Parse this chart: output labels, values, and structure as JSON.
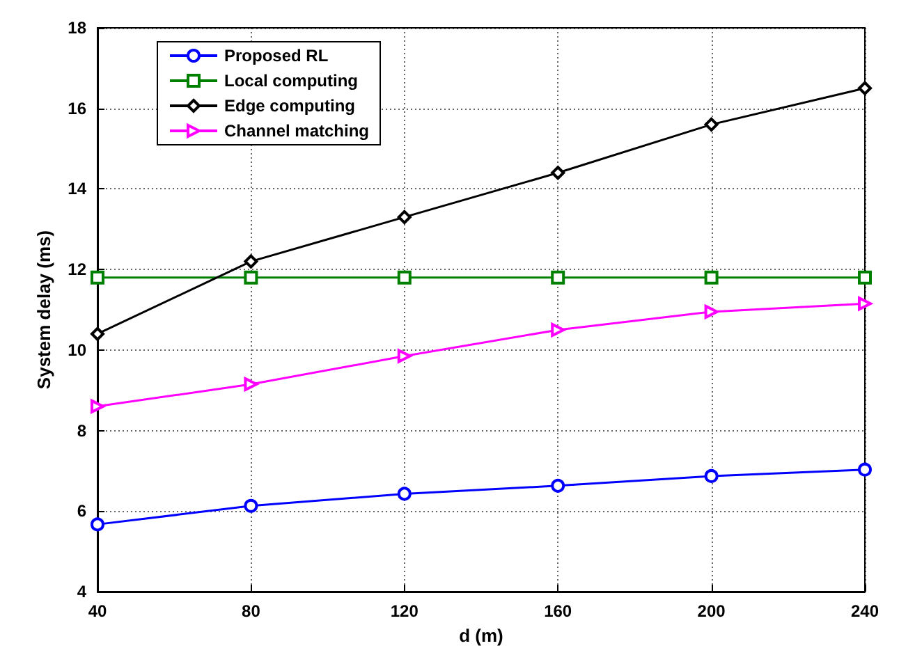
{
  "chart_data": {
    "type": "line",
    "xlabel": "d (m)",
    "ylabel": "System delay (ms)",
    "x": [
      40,
      80,
      120,
      160,
      200,
      240
    ],
    "xlim": [
      40,
      240
    ],
    "xticks": [
      40,
      80,
      120,
      160,
      200,
      240
    ],
    "ylim": [
      4,
      18
    ],
    "yticks": [
      4,
      6,
      8,
      10,
      12,
      14,
      16,
      18
    ],
    "grid": true,
    "legend": "top left",
    "line_style": "solid",
    "series": [
      {
        "name": "Proposed RL",
        "color": "#0000ff",
        "marker": "circle",
        "values": [
          5.67,
          6.13,
          6.43,
          6.63,
          6.87,
          7.03
        ]
      },
      {
        "name": "Local computing",
        "color": "#008000",
        "marker": "square",
        "values": [
          11.8,
          11.8,
          11.8,
          11.8,
          11.8,
          11.8
        ]
      },
      {
        "name": "Edge computing",
        "color": "#000000",
        "marker": "diamond",
        "values": [
          10.4,
          12.2,
          13.3,
          14.4,
          15.6,
          16.5
        ]
      },
      {
        "name": "Channel matching",
        "color": "#ff00ff",
        "marker": "triangle",
        "values": [
          8.6,
          9.15,
          9.85,
          10.5,
          10.95,
          11.15
        ]
      }
    ]
  }
}
